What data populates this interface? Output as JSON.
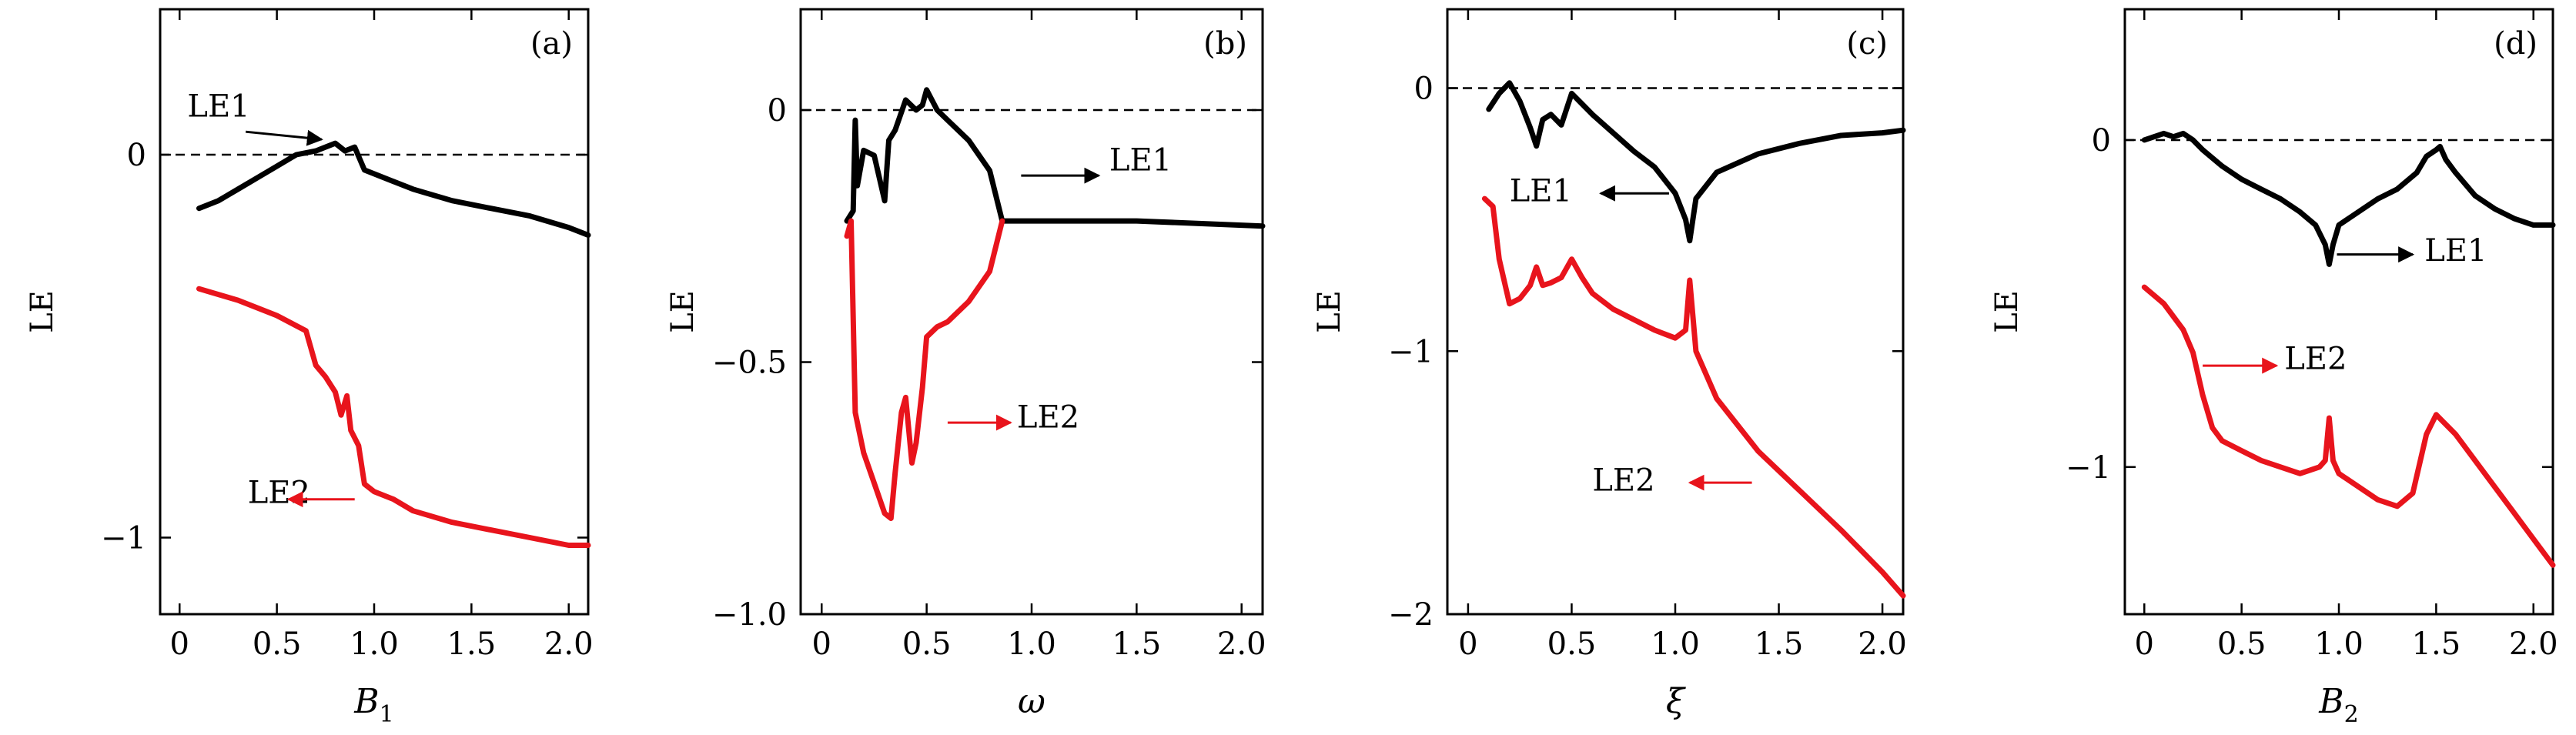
{
  "chart_data": [
    {
      "type": "line",
      "panel_tag": "(a)",
      "xlabel": "B",
      "xlabel_sub": "1",
      "ylabel": "LE",
      "xlim": [
        -0.1,
        2.1
      ],
      "ylim": [
        -1.2,
        0.38
      ],
      "xticks": [
        0,
        0.5,
        1.0,
        1.5,
        2.0
      ],
      "xticklabels": [
        "0",
        "0.5",
        "1.0",
        "1.5",
        "2.0"
      ],
      "yticks": [
        0,
        -1
      ],
      "yticklabels": [
        "0",
        "−1"
      ],
      "zero_line": true,
      "series": [
        {
          "name": "LE1",
          "color": "#000000",
          "points": [
            [
              0.1,
              -0.14
            ],
            [
              0.2,
              -0.12
            ],
            [
              0.3,
              -0.09
            ],
            [
              0.4,
              -0.06
            ],
            [
              0.5,
              -0.03
            ],
            [
              0.6,
              0.0
            ],
            [
              0.7,
              0.01
            ],
            [
              0.75,
              0.02
            ],
            [
              0.8,
              0.03
            ],
            [
              0.85,
              0.01
            ],
            [
              0.9,
              0.02
            ],
            [
              0.95,
              -0.04
            ],
            [
              1.0,
              -0.05
            ],
            [
              1.05,
              -0.06
            ],
            [
              1.1,
              -0.07
            ],
            [
              1.2,
              -0.09
            ],
            [
              1.4,
              -0.12
            ],
            [
              1.6,
              -0.14
            ],
            [
              1.8,
              -0.16
            ],
            [
              2.0,
              -0.19
            ],
            [
              2.1,
              -0.21
            ]
          ]
        },
        {
          "name": "LE2",
          "color": "#e8141c",
          "points": [
            [
              0.1,
              -0.35
            ],
            [
              0.3,
              -0.38
            ],
            [
              0.5,
              -0.42
            ],
            [
              0.65,
              -0.46
            ],
            [
              0.7,
              -0.55
            ],
            [
              0.75,
              -0.58
            ],
            [
              0.8,
              -0.62
            ],
            [
              0.83,
              -0.68
            ],
            [
              0.86,
              -0.63
            ],
            [
              0.88,
              -0.72
            ],
            [
              0.92,
              -0.76
            ],
            [
              0.95,
              -0.86
            ],
            [
              1.0,
              -0.88
            ],
            [
              1.1,
              -0.9
            ],
            [
              1.2,
              -0.93
            ],
            [
              1.4,
              -0.96
            ],
            [
              1.6,
              -0.98
            ],
            [
              1.8,
              -1.0
            ],
            [
              2.0,
              -1.02
            ],
            [
              2.1,
              -1.02
            ]
          ]
        }
      ],
      "annotations": [
        {
          "text": "LE1",
          "x": 0.04,
          "y": 0.1,
          "color": "#000000",
          "arrow_to": [
            0.73,
            0.04
          ]
        },
        {
          "text": "LE2",
          "x": 0.35,
          "y": -0.91,
          "color": "#000000",
          "arrow_color": "#e8141c",
          "arrow_from": [
            0.9,
            -0.9
          ],
          "arrow_to": [
            0.56,
            -0.9
          ]
        }
      ]
    },
    {
      "type": "line",
      "panel_tag": "(b)",
      "xlabel": "ω",
      "xlabel_sub": "",
      "ylabel": "LE",
      "xlim": [
        -0.1,
        2.1
      ],
      "ylim": [
        -1.0,
        0.2
      ],
      "xticks": [
        0,
        0.5,
        1.0,
        1.5,
        2.0
      ],
      "xticklabels": [
        "0",
        "0.5",
        "1.0",
        "1.5",
        "2.0"
      ],
      "yticks": [
        0,
        -0.5,
        -1.0
      ],
      "yticklabels": [
        "0",
        "−0.5",
        "−1.0"
      ],
      "zero_line": true,
      "series": [
        {
          "name": "LE1",
          "color": "#000000",
          "points": [
            [
              0.12,
              -0.22
            ],
            [
              0.15,
              -0.2
            ],
            [
              0.16,
              -0.02
            ],
            [
              0.17,
              -0.15
            ],
            [
              0.2,
              -0.08
            ],
            [
              0.25,
              -0.09
            ],
            [
              0.3,
              -0.18
            ],
            [
              0.32,
              -0.06
            ],
            [
              0.35,
              -0.04
            ],
            [
              0.4,
              0.02
            ],
            [
              0.45,
              0.0
            ],
            [
              0.48,
              0.01
            ],
            [
              0.5,
              0.04
            ],
            [
              0.55,
              0.0
            ],
            [
              0.6,
              -0.02
            ],
            [
              0.7,
              -0.06
            ],
            [
              0.8,
              -0.12
            ],
            [
              0.86,
              -0.22
            ],
            [
              1.0,
              -0.22
            ],
            [
              1.5,
              -0.22
            ],
            [
              2.1,
              -0.23
            ]
          ]
        },
        {
          "name": "LE2",
          "color": "#e8141c",
          "points": [
            [
              0.12,
              -0.25
            ],
            [
              0.14,
              -0.22
            ],
            [
              0.16,
              -0.6
            ],
            [
              0.2,
              -0.68
            ],
            [
              0.25,
              -0.74
            ],
            [
              0.3,
              -0.8
            ],
            [
              0.33,
              -0.81
            ],
            [
              0.35,
              -0.72
            ],
            [
              0.38,
              -0.6
            ],
            [
              0.4,
              -0.57
            ],
            [
              0.43,
              -0.7
            ],
            [
              0.45,
              -0.66
            ],
            [
              0.48,
              -0.55
            ],
            [
              0.5,
              -0.45
            ],
            [
              0.55,
              -0.43
            ],
            [
              0.6,
              -0.42
            ],
            [
              0.7,
              -0.38
            ],
            [
              0.8,
              -0.32
            ],
            [
              0.86,
              -0.22
            ]
          ]
        }
      ],
      "annotations": [
        {
          "text": "LE1",
          "x": 1.37,
          "y": -0.12,
          "color": "#000000",
          "arrow_color": "#000000",
          "arrow_from": [
            0.95,
            -0.13
          ],
          "arrow_to": [
            1.32,
            -0.13
          ]
        },
        {
          "text": "LE2",
          "x": 0.93,
          "y": -0.63,
          "color": "#000000",
          "arrow_color": "#e8141c",
          "arrow_from": [
            0.6,
            -0.62
          ],
          "arrow_to": [
            0.9,
            -0.62
          ]
        }
      ]
    },
    {
      "type": "line",
      "panel_tag": "(c)",
      "xlabel": "ξ",
      "xlabel_sub": "",
      "ylabel": "LE",
      "xlim": [
        -0.1,
        2.1
      ],
      "ylim": [
        -2.0,
        0.3
      ],
      "xticks": [
        0,
        0.5,
        1.0,
        1.5,
        2.0
      ],
      "xticklabels": [
        "0",
        "0.5",
        "1.0",
        "1.5",
        "2.0"
      ],
      "yticks": [
        0,
        -1,
        -2
      ],
      "yticklabels": [
        "0",
        "−1",
        "−2"
      ],
      "zero_line": true,
      "series": [
        {
          "name": "LE1",
          "color": "#000000",
          "points": [
            [
              0.1,
              -0.08
            ],
            [
              0.15,
              -0.02
            ],
            [
              0.2,
              0.02
            ],
            [
              0.25,
              -0.05
            ],
            [
              0.3,
              -0.15
            ],
            [
              0.33,
              -0.22
            ],
            [
              0.36,
              -0.12
            ],
            [
              0.4,
              -0.1
            ],
            [
              0.45,
              -0.14
            ],
            [
              0.5,
              -0.02
            ],
            [
              0.55,
              -0.06
            ],
            [
              0.6,
              -0.1
            ],
            [
              0.7,
              -0.17
            ],
            [
              0.8,
              -0.24
            ],
            [
              0.9,
              -0.3
            ],
            [
              1.0,
              -0.4
            ],
            [
              1.05,
              -0.5
            ],
            [
              1.07,
              -0.58
            ],
            [
              1.1,
              -0.42
            ],
            [
              1.2,
              -0.32
            ],
            [
              1.4,
              -0.25
            ],
            [
              1.6,
              -0.21
            ],
            [
              1.8,
              -0.18
            ],
            [
              2.0,
              -0.17
            ],
            [
              2.1,
              -0.16
            ]
          ]
        },
        {
          "name": "LE2",
          "color": "#e8141c",
          "points": [
            [
              0.08,
              -0.42
            ],
            [
              0.12,
              -0.45
            ],
            [
              0.15,
              -0.65
            ],
            [
              0.2,
              -0.82
            ],
            [
              0.25,
              -0.8
            ],
            [
              0.3,
              -0.75
            ],
            [
              0.33,
              -0.68
            ],
            [
              0.36,
              -0.75
            ],
            [
              0.4,
              -0.74
            ],
            [
              0.45,
              -0.72
            ],
            [
              0.5,
              -0.65
            ],
            [
              0.55,
              -0.72
            ],
            [
              0.6,
              -0.78
            ],
            [
              0.7,
              -0.84
            ],
            [
              0.8,
              -0.88
            ],
            [
              0.9,
              -0.92
            ],
            [
              1.0,
              -0.95
            ],
            [
              1.05,
              -0.92
            ],
            [
              1.07,
              -0.73
            ],
            [
              1.1,
              -1.0
            ],
            [
              1.2,
              -1.18
            ],
            [
              1.4,
              -1.38
            ],
            [
              1.6,
              -1.53
            ],
            [
              1.8,
              -1.68
            ],
            [
              2.0,
              -1.84
            ],
            [
              2.1,
              -1.93
            ]
          ]
        }
      ],
      "annotations": [
        {
          "text": "LE1",
          "x": 0.2,
          "y": -0.43,
          "color": "#000000",
          "arrow_color": "#000000",
          "arrow_from": [
            0.97,
            -0.4
          ],
          "arrow_to": [
            0.64,
            -0.4
          ]
        },
        {
          "text": "LE2",
          "x": 0.6,
          "y": -1.53,
          "color": "#000000",
          "arrow_color": "#e8141c",
          "arrow_from": [
            1.37,
            -1.5
          ],
          "arrow_to": [
            1.07,
            -1.5
          ]
        }
      ]
    },
    {
      "type": "line",
      "panel_tag": "(d)",
      "xlabel": "B",
      "xlabel_sub": "2",
      "ylabel": "LE",
      "xlim": [
        -0.1,
        2.1
      ],
      "ylim": [
        -1.45,
        0.4
      ],
      "xticks": [
        0,
        0.5,
        1.0,
        1.5,
        2.0
      ],
      "xticklabels": [
        "0",
        "0.5",
        "1.0",
        "1.5",
        "2.0"
      ],
      "yticks": [
        0,
        -1
      ],
      "yticklabels": [
        "0",
        "−1"
      ],
      "zero_line": true,
      "series": [
        {
          "name": "LE1",
          "color": "#000000",
          "points": [
            [
              0.0,
              0.0
            ],
            [
              0.05,
              0.01
            ],
            [
              0.1,
              0.02
            ],
            [
              0.15,
              0.01
            ],
            [
              0.2,
              0.02
            ],
            [
              0.25,
              0.0
            ],
            [
              0.3,
              -0.03
            ],
            [
              0.4,
              -0.08
            ],
            [
              0.5,
              -0.12
            ],
            [
              0.6,
              -0.15
            ],
            [
              0.7,
              -0.18
            ],
            [
              0.8,
              -0.22
            ],
            [
              0.88,
              -0.26
            ],
            [
              0.93,
              -0.32
            ],
            [
              0.95,
              -0.38
            ],
            [
              0.97,
              -0.32
            ],
            [
              1.0,
              -0.26
            ],
            [
              1.1,
              -0.22
            ],
            [
              1.2,
              -0.18
            ],
            [
              1.3,
              -0.15
            ],
            [
              1.4,
              -0.1
            ],
            [
              1.45,
              -0.05
            ],
            [
              1.5,
              -0.03
            ],
            [
              1.52,
              -0.02
            ],
            [
              1.55,
              -0.06
            ],
            [
              1.6,
              -0.1
            ],
            [
              1.7,
              -0.17
            ],
            [
              1.8,
              -0.21
            ],
            [
              1.9,
              -0.24
            ],
            [
              2.0,
              -0.26
            ],
            [
              2.1,
              -0.26
            ]
          ]
        },
        {
          "name": "LE2",
          "color": "#e8141c",
          "points": [
            [
              0.0,
              -0.45
            ],
            [
              0.1,
              -0.5
            ],
            [
              0.2,
              -0.58
            ],
            [
              0.25,
              -0.65
            ],
            [
              0.3,
              -0.78
            ],
            [
              0.35,
              -0.88
            ],
            [
              0.4,
              -0.92
            ],
            [
              0.5,
              -0.95
            ],
            [
              0.6,
              -0.98
            ],
            [
              0.7,
              -1.0
            ],
            [
              0.8,
              -1.02
            ],
            [
              0.9,
              -1.0
            ],
            [
              0.93,
              -0.98
            ],
            [
              0.95,
              -0.85
            ],
            [
              0.97,
              -0.98
            ],
            [
              1.0,
              -1.02
            ],
            [
              1.1,
              -1.06
            ],
            [
              1.2,
              -1.1
            ],
            [
              1.3,
              -1.12
            ],
            [
              1.38,
              -1.08
            ],
            [
              1.45,
              -0.9
            ],
            [
              1.5,
              -0.84
            ],
            [
              1.55,
              -0.87
            ],
            [
              1.6,
              -0.9
            ],
            [
              1.7,
              -0.98
            ],
            [
              1.8,
              -1.06
            ],
            [
              1.9,
              -1.14
            ],
            [
              2.0,
              -1.22
            ],
            [
              2.1,
              -1.3
            ]
          ]
        }
      ],
      "annotations": [
        {
          "text": "LE1",
          "x": 1.44,
          "y": -0.37,
          "color": "#000000",
          "arrow_color": "#000000",
          "arrow_from": [
            0.99,
            -0.35
          ],
          "arrow_to": [
            1.38,
            -0.35
          ]
        },
        {
          "text": "LE2",
          "x": 0.72,
          "y": -0.7,
          "color": "#000000",
          "arrow_color": "#e8141c",
          "arrow_from": [
            0.3,
            -0.69
          ],
          "arrow_to": [
            0.68,
            -0.69
          ]
        }
      ]
    }
  ]
}
